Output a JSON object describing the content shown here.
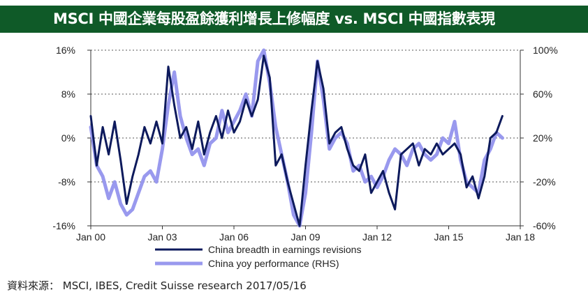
{
  "title": "MSCI 中國企業每股盈餘獲利增長上修幅度 vs. MSCI 中國指數表現",
  "source": "資料來源： MSCI, IBES, Credit Suisse research 2017/05/16",
  "colors": {
    "header_bg": "#0f5a28",
    "series1": "#0d1a5c",
    "series2": "#9999ee"
  },
  "chart_data": {
    "type": "line",
    "x_tick_labels": [
      "Jan 00",
      "Jan 03",
      "Jan 06",
      "Jan 09",
      "Jan 12",
      "Jan 15",
      "Jan 18"
    ],
    "x_range": [
      2000,
      2018
    ],
    "y_left": {
      "ticks": [
        "16%",
        "8%",
        "0%",
        "-8%",
        "-16%"
      ],
      "range": [
        -16,
        16
      ]
    },
    "y_right": {
      "ticks": [
        "100%",
        "60%",
        "20%",
        "-20%",
        "-60%"
      ],
      "range": [
        -60,
        100
      ]
    },
    "grid": "horizontal",
    "legend_position": "bottom",
    "series": [
      {
        "name": "China breadth in earnings revisions",
        "axis": "left",
        "x": [
          2000.0,
          2000.25,
          2000.5,
          2000.75,
          2001.0,
          2001.25,
          2001.5,
          2001.75,
          2002.0,
          2002.25,
          2002.5,
          2002.75,
          2003.0,
          2003.25,
          2003.5,
          2003.75,
          2004.0,
          2004.25,
          2004.5,
          2004.75,
          2005.0,
          2005.25,
          2005.5,
          2005.75,
          2006.0,
          2006.25,
          2006.5,
          2006.75,
          2007.0,
          2007.25,
          2007.5,
          2007.75,
          2008.0,
          2008.25,
          2008.5,
          2008.75,
          2009.0,
          2009.25,
          2009.5,
          2009.75,
          2010.0,
          2010.25,
          2010.5,
          2010.75,
          2011.0,
          2011.25,
          2011.5,
          2011.75,
          2012.0,
          2012.25,
          2012.5,
          2012.75,
          2013.0,
          2013.25,
          2013.5,
          2013.75,
          2014.0,
          2014.25,
          2014.5,
          2014.75,
          2015.0,
          2015.25,
          2015.5,
          2015.75,
          2016.0,
          2016.25,
          2016.5,
          2016.75,
          2017.0,
          2017.25
        ],
        "y": [
          4,
          -5,
          2,
          -3,
          3,
          -4,
          -12,
          -7,
          -3,
          2,
          -1,
          3,
          -1,
          13,
          6,
          0,
          2,
          -2,
          3,
          -3,
          1,
          4,
          0,
          5,
          1,
          3,
          7,
          4,
          7,
          15,
          11,
          -5,
          -3,
          -8,
          -12,
          -16,
          -5,
          5,
          14,
          9,
          -1,
          1,
          2,
          -2,
          -5,
          -6,
          -3,
          -10,
          -8,
          -6,
          -10,
          -13,
          -3,
          -2,
          -1,
          -5,
          -2,
          -3,
          -1,
          -3,
          -2,
          -1,
          -3,
          -9,
          -7,
          -11,
          -7,
          0,
          1,
          4
        ]
      },
      {
        "name": "China yoy performance (RHS)",
        "axis": "right",
        "x": [
          2000.0,
          2000.25,
          2000.5,
          2000.75,
          2001.0,
          2001.25,
          2001.5,
          2001.75,
          2002.0,
          2002.25,
          2002.5,
          2002.75,
          2003.0,
          2003.25,
          2003.5,
          2003.75,
          2004.0,
          2004.25,
          2004.5,
          2004.75,
          2005.0,
          2005.25,
          2005.5,
          2005.75,
          2006.0,
          2006.25,
          2006.5,
          2006.75,
          2007.0,
          2007.25,
          2007.5,
          2007.75,
          2008.0,
          2008.25,
          2008.5,
          2008.75,
          2009.0,
          2009.25,
          2009.5,
          2009.75,
          2010.0,
          2010.25,
          2010.5,
          2010.75,
          2011.0,
          2011.25,
          2011.5,
          2011.75,
          2012.0,
          2012.25,
          2012.5,
          2012.75,
          2013.0,
          2013.25,
          2013.5,
          2013.75,
          2014.0,
          2014.25,
          2014.5,
          2014.75,
          2015.0,
          2015.25,
          2015.5,
          2015.75,
          2016.0,
          2016.25,
          2016.5,
          2016.75,
          2017.0,
          2017.25
        ],
        "y": [
          30,
          -5,
          -15,
          -35,
          -20,
          -40,
          -50,
          -45,
          -30,
          -15,
          -10,
          -20,
          10,
          50,
          80,
          40,
          20,
          5,
          10,
          -5,
          15,
          20,
          45,
          25,
          35,
          45,
          60,
          40,
          90,
          100,
          70,
          30,
          5,
          -20,
          -50,
          -60,
          -30,
          25,
          90,
          55,
          10,
          20,
          25,
          15,
          -10,
          -5,
          -20,
          -15,
          -25,
          -15,
          0,
          10,
          5,
          -5,
          10,
          15,
          5,
          0,
          5,
          20,
          15,
          35,
          0,
          -20,
          -25,
          -30,
          0,
          10,
          25,
          20
        ]
      }
    ]
  }
}
